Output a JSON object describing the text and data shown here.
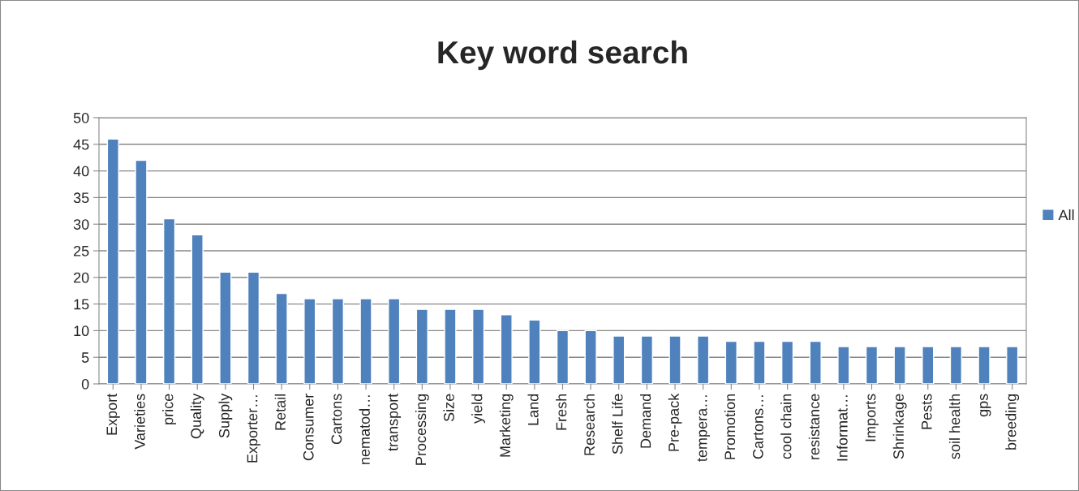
{
  "chart_data": {
    "type": "bar",
    "title": "Key word search",
    "categories": [
      "Export",
      "Varieties",
      "price",
      "Quality",
      "Supply",
      "Exporter…",
      "Retail",
      "Consumer",
      "Cartons",
      "nematod…",
      "transport",
      "Processing",
      "Size",
      "yield",
      "Marketing",
      "Land",
      "Fresh",
      "Research",
      "Shelf Life",
      "Demand",
      "Pre-pack",
      "tempera…",
      "Promotion",
      "Cartons…",
      "cool chain",
      "resistance",
      "Informat…",
      "Imports",
      "Shrinkage",
      "Pests",
      "soil health",
      "gps",
      "breeding"
    ],
    "series": [
      {
        "name": "All",
        "color": "#4f81bd",
        "values": [
          46,
          42,
          31,
          28,
          21,
          21,
          17,
          16,
          16,
          16,
          16,
          14,
          14,
          14,
          13,
          12,
          10,
          10,
          9,
          9,
          9,
          9,
          8,
          8,
          8,
          8,
          7,
          7,
          7,
          7,
          7,
          7,
          7
        ]
      }
    ],
    "ylim": [
      0,
      50
    ],
    "yticks": [
      0,
      5,
      10,
      15,
      20,
      25,
      30,
      35,
      40,
      45,
      50
    ],
    "grid": "y",
    "legend": "right"
  }
}
